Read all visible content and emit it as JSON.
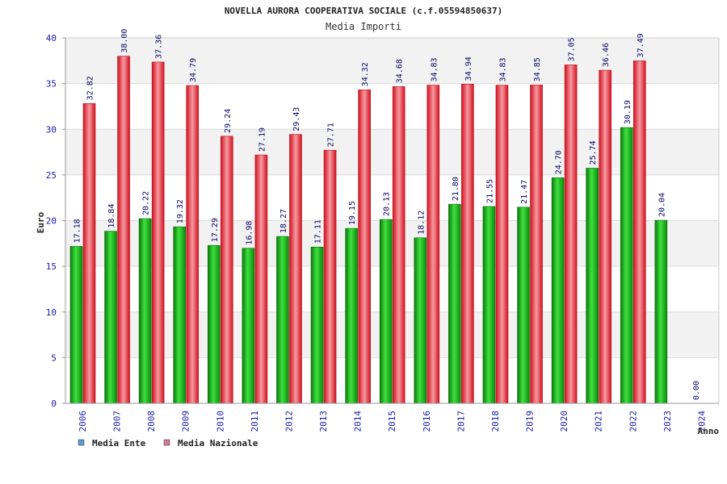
{
  "chart_data": {
    "type": "bar",
    "title": "NOVELLA AURORA COOPERATIVA SOCIALE (c.f.05594850637)",
    "subtitle": "Media Importi",
    "xlabel": "Anno",
    "ylabel": "Euro",
    "ylim": [
      0,
      40
    ],
    "yticks": [
      0,
      5,
      10,
      15,
      20,
      25,
      30,
      35,
      40
    ],
    "grid": true,
    "legend_position": "bottom-left",
    "categories": [
      "2006",
      "2007",
      "2008",
      "2009",
      "2010",
      "2011",
      "2012",
      "2013",
      "2014",
      "2015",
      "2016",
      "2017",
      "2018",
      "2019",
      "2020",
      "2021",
      "2022",
      "2023",
      "2024"
    ],
    "series": [
      {
        "name": "Media Ente",
        "legend_color": "#5b9bd5",
        "bar_color": "#1db31d",
        "values": [
          17.18,
          18.84,
          20.22,
          19.32,
          17.29,
          16.98,
          18.27,
          17.11,
          19.15,
          20.13,
          18.12,
          21.8,
          21.55,
          21.47,
          24.7,
          25.74,
          30.19,
          20.04,
          0.0
        ],
        "labels": [
          "17.18",
          "18.84",
          "20.22",
          "19.32",
          "17.29",
          "16.98",
          "18.27",
          "17.11",
          "19.15",
          "20.13",
          "18.12",
          "21.80",
          "21.55",
          "21.47",
          "24.70",
          "25.74",
          "30.19",
          "20.04",
          "0.00"
        ]
      },
      {
        "name": "Media Nazionale",
        "legend_color": "#d9739b",
        "bar_color": "#e8343f",
        "values": [
          32.82,
          38.0,
          37.36,
          34.79,
          29.24,
          27.19,
          29.43,
          27.71,
          34.32,
          34.68,
          34.83,
          34.94,
          34.83,
          34.85,
          37.05,
          36.46,
          37.49,
          null,
          null
        ],
        "labels": [
          "32.82",
          "38.00",
          "37.36",
          "34.79",
          "29.24",
          "27.19",
          "29.43",
          "27.71",
          "34.32",
          "34.68",
          "34.83",
          "34.94",
          "34.83",
          "34.85",
          "37.05",
          "36.46",
          "37.49",
          null,
          null
        ]
      }
    ]
  }
}
